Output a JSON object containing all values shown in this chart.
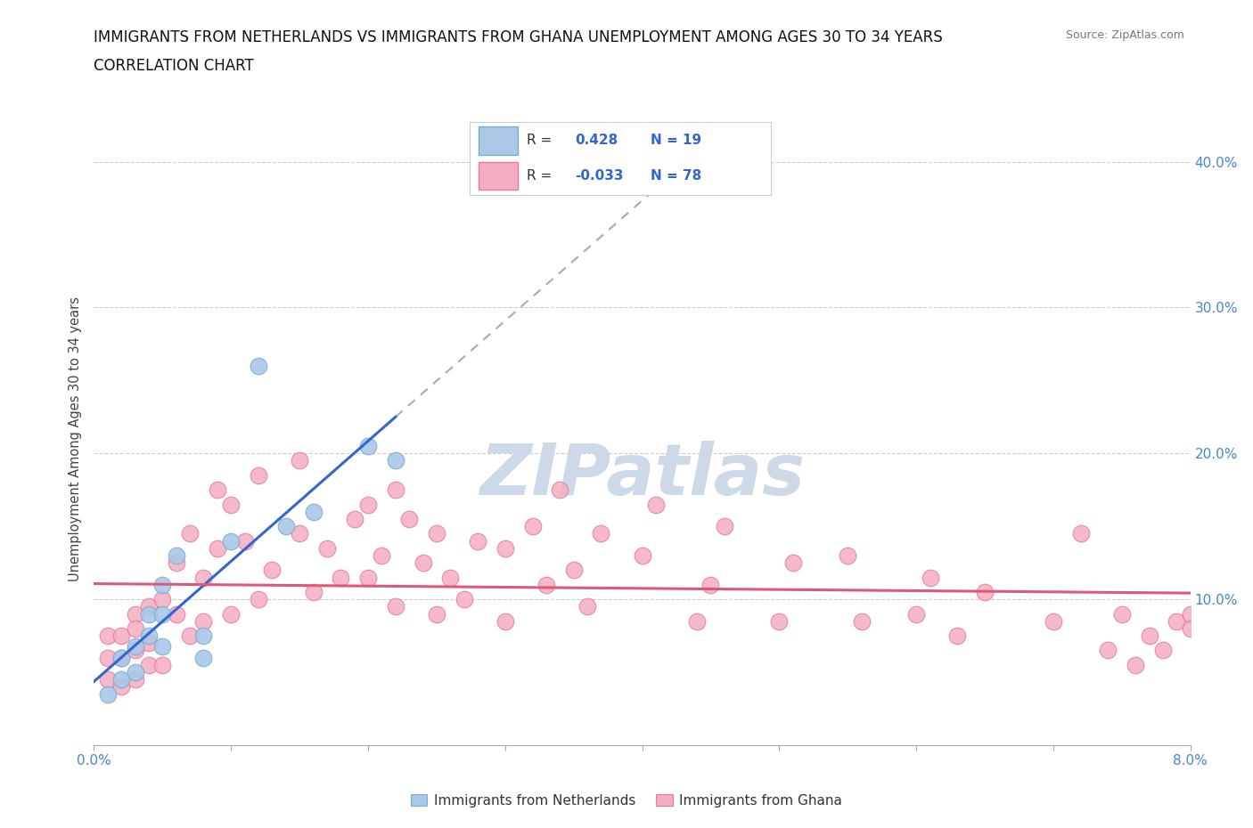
{
  "title_line1": "IMMIGRANTS FROM NETHERLANDS VS IMMIGRANTS FROM GHANA UNEMPLOYMENT AMONG AGES 30 TO 34 YEARS",
  "title_line2": "CORRELATION CHART",
  "source_text": "Source: ZipAtlas.com",
  "ylabel": "Unemployment Among Ages 30 to 34 years",
  "xlim": [
    0.0,
    0.08
  ],
  "ylim": [
    0.0,
    0.42
  ],
  "xticks": [
    0.0,
    0.01,
    0.02,
    0.03,
    0.04,
    0.05,
    0.06,
    0.07,
    0.08
  ],
  "xticklabels": [
    "0.0%",
    "",
    "",
    "",
    "",
    "",
    "",
    "",
    "8.0%"
  ],
  "yticks": [
    0.0,
    0.1,
    0.2,
    0.3,
    0.4
  ],
  "yticklabels_right": [
    "",
    "10.0%",
    "20.0%",
    "30.0%",
    "40.0%"
  ],
  "netherlands_R": 0.428,
  "netherlands_N": 19,
  "ghana_R": -0.033,
  "ghana_N": 78,
  "netherlands_dot_color": "#aac8e8",
  "netherlands_edge_color": "#7aaed0",
  "ghana_dot_color": "#f5adc0",
  "ghana_edge_color": "#e87aa0",
  "nl_line_color": "#3366cc",
  "gh_line_color": "#e05878",
  "dashed_ext_color": "#aaaaaa",
  "watermark_text": "ZIPatlas",
  "watermark_color": "#cdd8e8",
  "background_color": "#ffffff",
  "tick_label_color": "#4488cc",
  "legend_R_color": "#333333",
  "legend_val_color": "#3366cc",
  "legend_N_color": "#3366cc",
  "netherlands_x": [
    0.001,
    0.002,
    0.002,
    0.003,
    0.003,
    0.004,
    0.004,
    0.005,
    0.005,
    0.005,
    0.006,
    0.008,
    0.008,
    0.01,
    0.012,
    0.014,
    0.016,
    0.02,
    0.022
  ],
  "netherlands_y": [
    0.035,
    0.045,
    0.06,
    0.05,
    0.068,
    0.075,
    0.09,
    0.068,
    0.09,
    0.11,
    0.13,
    0.06,
    0.075,
    0.14,
    0.26,
    0.15,
    0.16,
    0.205,
    0.195
  ],
  "ghana_x": [
    0.001,
    0.001,
    0.001,
    0.002,
    0.002,
    0.002,
    0.003,
    0.003,
    0.003,
    0.003,
    0.004,
    0.004,
    0.004,
    0.005,
    0.005,
    0.006,
    0.006,
    0.007,
    0.007,
    0.008,
    0.008,
    0.009,
    0.009,
    0.01,
    0.01,
    0.011,
    0.012,
    0.012,
    0.013,
    0.015,
    0.015,
    0.016,
    0.017,
    0.018,
    0.019,
    0.02,
    0.02,
    0.021,
    0.022,
    0.022,
    0.023,
    0.024,
    0.025,
    0.025,
    0.026,
    0.027,
    0.028,
    0.03,
    0.03,
    0.032,
    0.033,
    0.034,
    0.035,
    0.036,
    0.037,
    0.04,
    0.041,
    0.044,
    0.045,
    0.046,
    0.05,
    0.051,
    0.055,
    0.056,
    0.06,
    0.061,
    0.063,
    0.065,
    0.07,
    0.072,
    0.074,
    0.075,
    0.076,
    0.077,
    0.078,
    0.079,
    0.08,
    0.08
  ],
  "ghana_y": [
    0.075,
    0.06,
    0.045,
    0.06,
    0.075,
    0.04,
    0.09,
    0.065,
    0.045,
    0.08,
    0.095,
    0.07,
    0.055,
    0.1,
    0.055,
    0.125,
    0.09,
    0.075,
    0.145,
    0.115,
    0.085,
    0.135,
    0.175,
    0.09,
    0.165,
    0.14,
    0.1,
    0.185,
    0.12,
    0.145,
    0.195,
    0.105,
    0.135,
    0.115,
    0.155,
    0.165,
    0.115,
    0.13,
    0.175,
    0.095,
    0.155,
    0.125,
    0.145,
    0.09,
    0.115,
    0.1,
    0.14,
    0.135,
    0.085,
    0.15,
    0.11,
    0.175,
    0.12,
    0.095,
    0.145,
    0.13,
    0.165,
    0.085,
    0.11,
    0.15,
    0.085,
    0.125,
    0.13,
    0.085,
    0.09,
    0.115,
    0.075,
    0.105,
    0.085,
    0.145,
    0.065,
    0.09,
    0.055,
    0.075,
    0.065,
    0.085,
    0.09,
    0.08
  ]
}
